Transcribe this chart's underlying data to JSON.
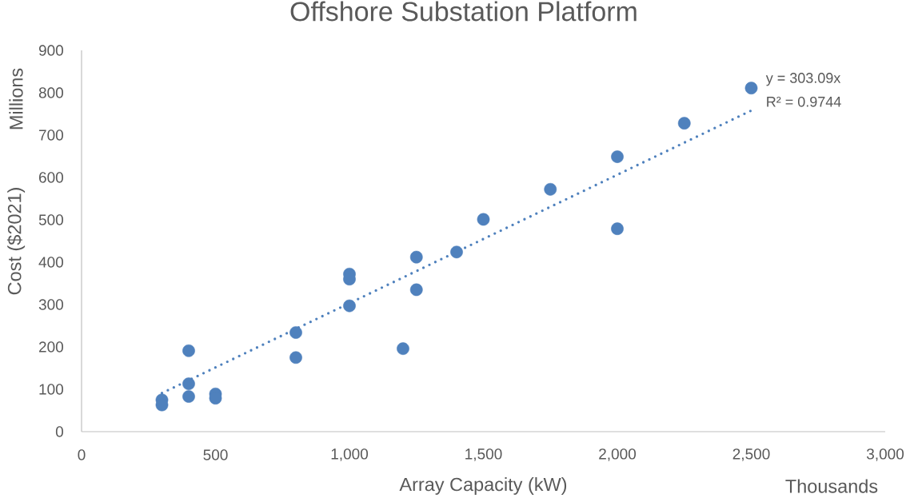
{
  "chart_data": {
    "type": "scatter",
    "title": "Offshore Substation Platform",
    "xlabel": "Array Capacity (kW)",
    "ylabel": "Cost ($2021)",
    "annotations": [
      "y = 303.09x",
      "R² = 0.9744",
      "Millions",
      "Thousands"
    ],
    "xlim": [
      0,
      3000
    ],
    "ylim": [
      0,
      900
    ],
    "xticks": [
      0,
      500,
      {
        "value": 1000,
        "label": "1,000"
      },
      {
        "value": 1500,
        "label": "1,500"
      },
      {
        "value": 2000,
        "label": "2,000"
      },
      {
        "value": 2500,
        "label": "2,500"
      },
      {
        "value": 3000,
        "label": "3,000"
      }
    ],
    "yticks": [
      0,
      100,
      200,
      300,
      400,
      500,
      600,
      700,
      800,
      900
    ],
    "marker": "circle",
    "series": [
      {
        "color": "#4f81bd",
        "x": [
          300,
          300,
          400,
          400,
          400,
          500,
          500,
          800,
          800,
          1000,
          1000,
          1000,
          1200,
          1250,
          1250,
          1400,
          1500,
          1750,
          2000,
          2000,
          2250,
          2500
        ],
        "values": [
          75,
          63,
          191,
          113,
          83,
          89,
          79,
          234,
          175,
          372,
          360,
          297,
          196,
          412,
          335,
          424,
          501,
          572,
          649,
          479,
          728,
          811
        ]
      },
      {
        "type": "line",
        "color": "#4f81bd",
        "x": [
          300,
          2500
        ],
        "values": [
          91,
          758
        ],
        "line_style": "dotted",
        "marker": "none"
      }
    ]
  }
}
